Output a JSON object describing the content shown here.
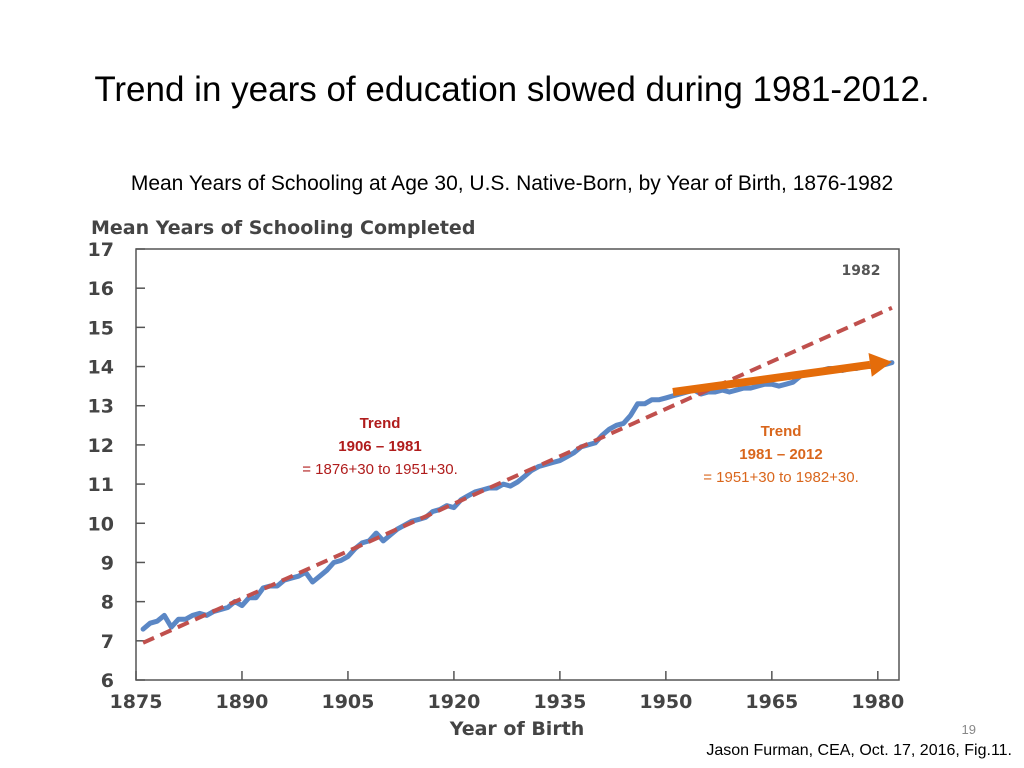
{
  "slide": {
    "title": "Trend in years of education slowed during 1981-2012.",
    "caption": "Mean Years of Schooling at Age 30, U.S. Native-Born, by Year of Birth, 1876-1982",
    "source": "Jason Furman, CEA, Oct. 17, 2016, Fig.11.",
    "page_number": "19"
  },
  "colors": {
    "actual_series": "#5b87c5",
    "trend_1906_1981": "#c0504d",
    "trend_1981_2012": "#e46c0a",
    "annotation_red": "#b01c1c",
    "annotation_orange": "#d9661c",
    "frame": "#555555"
  },
  "chart_data": {
    "type": "line",
    "title": "Mean Years of Schooling Completed",
    "xlabel": "Year of Birth",
    "ylabel": "",
    "xlim": [
      1875,
      1983
    ],
    "ylim": [
      6,
      17
    ],
    "x_ticks": [
      1875,
      1890,
      1905,
      1920,
      1935,
      1950,
      1965,
      1980
    ],
    "y_ticks": [
      6,
      7,
      8,
      9,
      10,
      11,
      12,
      13,
      14,
      15,
      16,
      17
    ],
    "grid": false,
    "end_label": "1982",
    "series": [
      {
        "style": "solid",
        "x": [
          1876,
          1877,
          1878,
          1879,
          1880,
          1881,
          1882,
          1883,
          1884,
          1885,
          1886,
          1887,
          1888,
          1889,
          1890,
          1891,
          1892,
          1893,
          1894,
          1895,
          1896,
          1897,
          1898,
          1899,
          1900,
          1901,
          1902,
          1903,
          1904,
          1905,
          1906,
          1907,
          1908,
          1909,
          1910,
          1911,
          1912,
          1913,
          1914,
          1915,
          1916,
          1917,
          1918,
          1919,
          1920,
          1921,
          1922,
          1923,
          1924,
          1925,
          1926,
          1927,
          1928,
          1929,
          1930,
          1931,
          1932,
          1933,
          1934,
          1935,
          1936,
          1937,
          1938,
          1939,
          1940,
          1941,
          1942,
          1943,
          1944,
          1945,
          1946,
          1947,
          1948,
          1949,
          1950,
          1951,
          1952,
          1953,
          1954,
          1955,
          1956,
          1957,
          1958,
          1959,
          1960,
          1961,
          1962,
          1963,
          1964,
          1965,
          1966,
          1967,
          1968,
          1969,
          1970,
          1971,
          1972,
          1973,
          1974,
          1975,
          1976,
          1977,
          1978,
          1979,
          1980,
          1981,
          1982
        ],
        "values": [
          7.3,
          7.45,
          7.5,
          7.65,
          7.35,
          7.55,
          7.55,
          7.65,
          7.7,
          7.65,
          7.75,
          7.8,
          7.85,
          8.0,
          7.9,
          8.1,
          8.1,
          8.35,
          8.4,
          8.4,
          8.55,
          8.6,
          8.65,
          8.75,
          8.5,
          8.65,
          8.8,
          9.0,
          9.05,
          9.15,
          9.35,
          9.5,
          9.55,
          9.75,
          9.55,
          9.7,
          9.85,
          9.95,
          10.05,
          10.1,
          10.15,
          10.3,
          10.35,
          10.45,
          10.4,
          10.6,
          10.7,
          10.8,
          10.85,
          10.9,
          10.9,
          11.0,
          10.95,
          11.05,
          11.2,
          11.35,
          11.45,
          11.5,
          11.55,
          11.6,
          11.7,
          11.8,
          11.95,
          12.0,
          12.05,
          12.25,
          12.4,
          12.5,
          12.55,
          12.75,
          13.05,
          13.05,
          13.15,
          13.15,
          13.2,
          13.25,
          13.3,
          13.35,
          13.4,
          13.3,
          13.35,
          13.35,
          13.4,
          13.35,
          13.4,
          13.45,
          13.45,
          13.5,
          13.55,
          13.55,
          13.5,
          13.55,
          13.6,
          13.75,
          13.85,
          13.85,
          13.9,
          13.95,
          13.95,
          13.9,
          13.95,
          13.95,
          14.0,
          14.0,
          14.05,
          14.05,
          14.1
        ]
      },
      {
        "style": "dashed",
        "x": [
          1876,
          1982
        ],
        "values": [
          6.95,
          15.5
        ]
      },
      {
        "style": "arrow",
        "x": [
          1951,
          1982
        ],
        "values": [
          13.35,
          14.12
        ]
      }
    ],
    "annotations": [
      {
        "title": "Trend",
        "range": "1906 – 1981",
        "detail": "= 1876+30 to 1951+30."
      },
      {
        "title": "Trend",
        "range": "1981 – 2012",
        "detail": "= 1951+30 to 1982+30."
      }
    ]
  }
}
